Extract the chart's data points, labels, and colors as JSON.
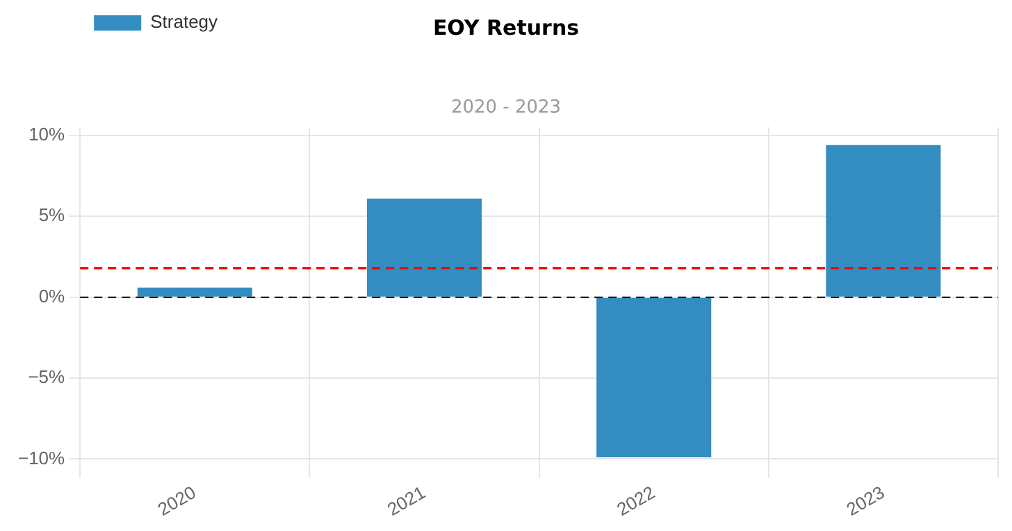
{
  "chart_data": {
    "type": "bar",
    "title": "EOY Returns",
    "subtitle": "2020 - 2023",
    "categories": [
      "2020",
      "2021",
      "2022",
      "2023"
    ],
    "series": [
      {
        "name": "Strategy",
        "color": "#348dc1",
        "values": [
          0.6,
          6.1,
          -9.9,
          9.4
        ]
      }
    ],
    "ylim": [
      -10.5,
      10.5
    ],
    "yticks": [
      {
        "value": -10,
        "label": "−10%"
      },
      {
        "value": -5,
        "label": "−5%"
      },
      {
        "value": 0,
        "label": "0%"
      },
      {
        "value": 5,
        "label": "5%"
      },
      {
        "value": 10,
        "label": "10%"
      }
    ],
    "ref_lines": [
      {
        "axis": "y",
        "value": 1.8,
        "color": "#ff0000",
        "line_style": "dashed"
      },
      {
        "axis": "y",
        "value": 0,
        "color": "#000000",
        "line_style": "dashed"
      }
    ],
    "grid": true,
    "legend": "top left"
  }
}
